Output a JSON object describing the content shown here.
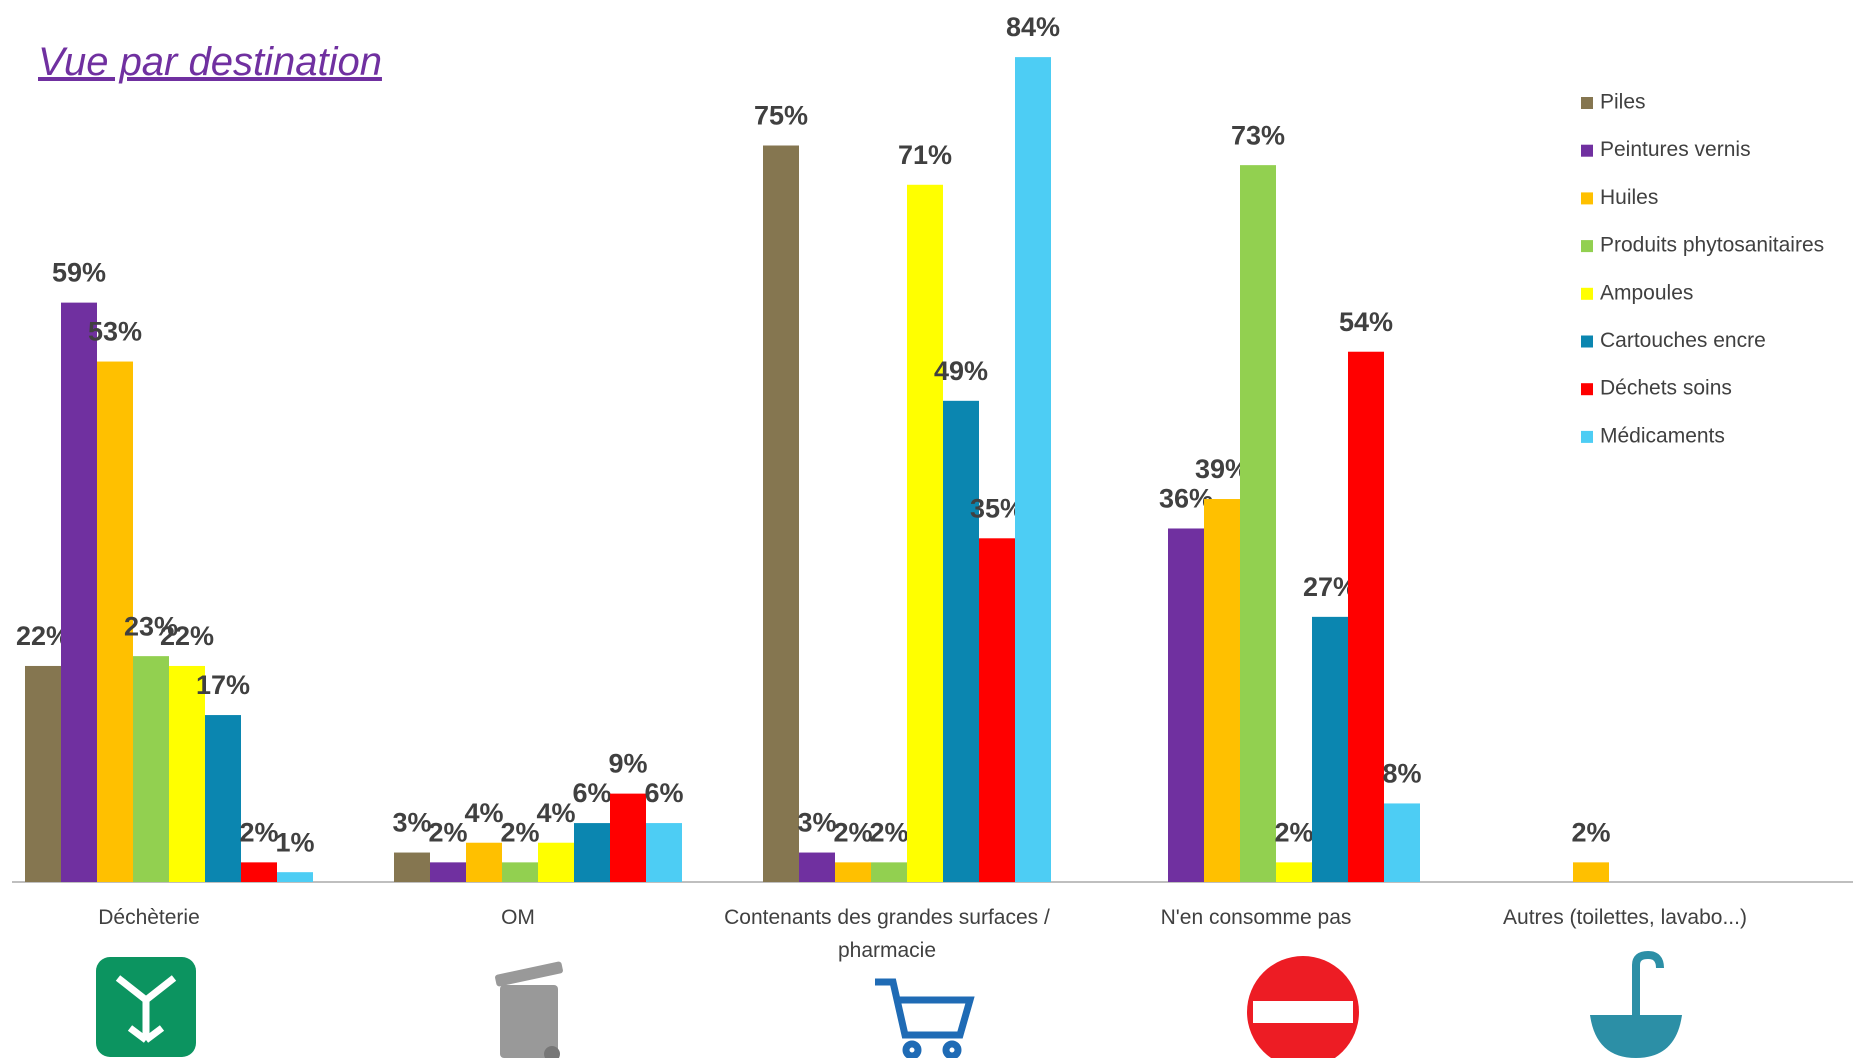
{
  "chart_data": {
    "type": "bar",
    "title": "Vue par destination",
    "categories": [
      "Déchèterie",
      "OM",
      "Contenants des grandes surfaces / pharmacie",
      "N'en consomme pas",
      "Autres (toilettes, lavabo...)"
    ],
    "series": [
      {
        "name": "Piles",
        "color": "#857650",
        "values": [
          22,
          3,
          75,
          null,
          null
        ],
        "value_labels": [
          "22%",
          "3%",
          "75%",
          null,
          null
        ]
      },
      {
        "name": "Peintures vernis",
        "color": "#7030a0",
        "values": [
          59,
          2,
          3,
          36,
          null
        ],
        "value_labels": [
          "59%",
          "2%",
          "3%",
          "36%",
          null
        ]
      },
      {
        "name": "Huiles",
        "color": "#ffc000",
        "values": [
          53,
          4,
          2,
          39,
          2
        ],
        "value_labels": [
          "53%",
          "4%",
          "2%",
          "39%",
          "2%"
        ]
      },
      {
        "name": "Produits phytosanitaires",
        "color": "#92d050",
        "values": [
          23,
          2,
          2,
          73,
          null
        ],
        "value_labels": [
          "23%",
          "2%",
          "2%",
          "73%",
          null
        ]
      },
      {
        "name": "Ampoules",
        "color": "#ffff00",
        "values": [
          22,
          4,
          71,
          2,
          null
        ],
        "value_labels": [
          "22%",
          "4%",
          "71%",
          "2%",
          null
        ]
      },
      {
        "name": "Cartouches encre",
        "color": "#0b86b0",
        "values": [
          17,
          6,
          49,
          27,
          null
        ],
        "value_labels": [
          "17%",
          "6%",
          "49%",
          "27%",
          null
        ]
      },
      {
        "name": "Déchets soins",
        "color": "#ff0000",
        "values": [
          2,
          9,
          35,
          54,
          null
        ],
        "value_labels": [
          "2%",
          "9%",
          "35%",
          "54%",
          null
        ]
      },
      {
        "name": "Médicaments",
        "color": "#4dcdf4",
        "values": [
          1,
          6,
          84,
          8,
          null
        ],
        "value_labels": [
          "1%",
          "6%",
          "84%",
          "8%",
          null
        ]
      }
    ],
    "legend": "right"
  }
}
